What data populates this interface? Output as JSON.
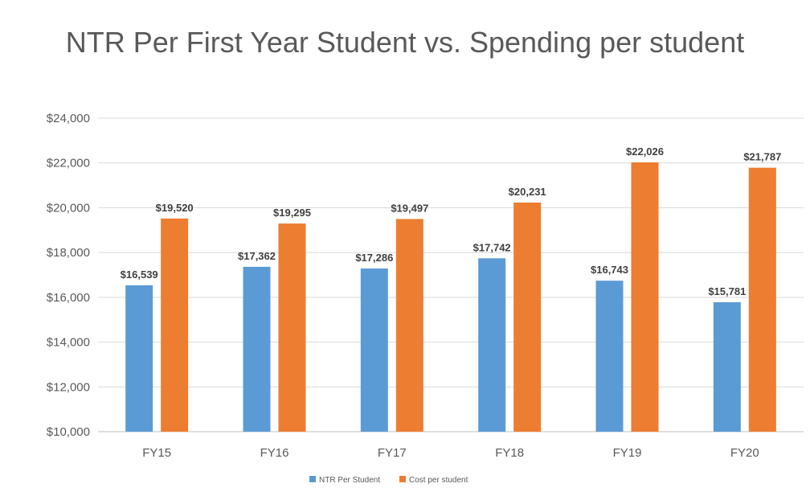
{
  "chart_data": {
    "type": "bar",
    "title": "NTR Per First Year Student vs. Spending per student",
    "categories": [
      "FY15",
      "FY16",
      "FY17",
      "FY18",
      "FY19",
      "FY20"
    ],
    "series": [
      {
        "name": "NTR Per Student",
        "color": "#5B9BD5",
        "values": [
          16539,
          17362,
          17286,
          17742,
          16743,
          15781
        ],
        "labels": [
          "$16,539",
          "$17,362",
          "$17,286",
          "$17,742",
          "$16,743",
          "$15,781"
        ]
      },
      {
        "name": "Cost per student",
        "color": "#ED7D31",
        "values": [
          19520,
          19295,
          19497,
          20231,
          22026,
          21787
        ],
        "labels": [
          "$19,520",
          "$19,295",
          "$19,497",
          "$20,231",
          "$22,026",
          "$21,787"
        ]
      }
    ],
    "ylim": [
      10000,
      24000
    ],
    "yticks": [
      10000,
      12000,
      14000,
      16000,
      18000,
      20000,
      22000,
      24000
    ],
    "ytick_labels": [
      "$10,000",
      "$12,000",
      "$14,000",
      "$16,000",
      "$18,000",
      "$20,000",
      "$22,000",
      "$24,000"
    ],
    "xlabel": "",
    "ylabel": "",
    "grid": true,
    "legend_position": "bottom"
  }
}
